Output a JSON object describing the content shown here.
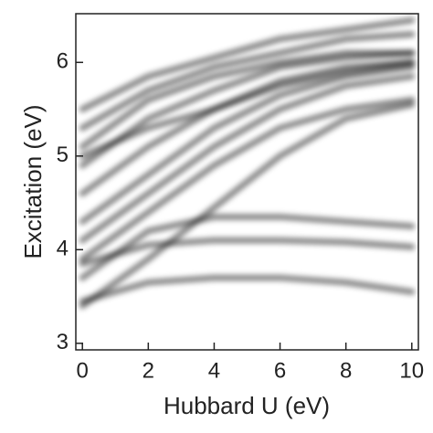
{
  "chart_data": {
    "type": "line",
    "xlabel": "Hubbard U (eV)",
    "ylabel": "Excitation (eV)",
    "x": [
      0,
      2,
      4,
      6,
      8,
      10
    ],
    "xlim": [
      -0.2,
      10.2
    ],
    "ylim": [
      2.93,
      6.52
    ],
    "xticks": [
      0,
      2,
      4,
      6,
      8,
      10
    ],
    "yticks": [
      3,
      4,
      5,
      6
    ],
    "series": [
      {
        "color": "#000000",
        "values": [
          3.45,
          3.65,
          3.7,
          3.7,
          3.65,
          3.55
        ]
      },
      {
        "color": "#000000",
        "values": [
          3.85,
          4.05,
          4.1,
          4.1,
          4.08,
          4.03
        ]
      },
      {
        "color": "#000000",
        "values": [
          3.7,
          4.2,
          4.35,
          4.35,
          4.3,
          4.25
        ]
      },
      {
        "color": "#000000",
        "values": [
          3.4,
          3.9,
          4.45,
          5.0,
          5.4,
          5.55
        ]
      },
      {
        "color": "#000000",
        "values": [
          3.9,
          4.4,
          4.9,
          5.3,
          5.5,
          5.6
        ]
      },
      {
        "color": "#000000",
        "values": [
          4.1,
          4.6,
          5.1,
          5.5,
          5.75,
          5.85
        ]
      },
      {
        "color": "#000000",
        "values": [
          4.3,
          4.8,
          5.3,
          5.65,
          5.85,
          5.95
        ]
      },
      {
        "color": "#000000",
        "values": [
          4.6,
          5.1,
          5.5,
          5.8,
          5.95,
          6.0
        ]
      },
      {
        "color": "#000000",
        "values": [
          4.9,
          5.4,
          5.7,
          5.95,
          6.05,
          6.1
        ]
      },
      {
        "color": "#000000",
        "values": [
          5.0,
          5.3,
          5.5,
          5.75,
          5.9,
          6.0
        ]
      },
      {
        "color": "#000000",
        "values": [
          5.1,
          5.6,
          5.85,
          6.0,
          6.1,
          6.1
        ]
      },
      {
        "color": "#000000",
        "values": [
          5.3,
          5.7,
          5.95,
          6.1,
          6.25,
          6.3
        ]
      },
      {
        "color": "#000000",
        "values": [
          5.5,
          5.85,
          6.05,
          6.25,
          6.35,
          6.45
        ]
      }
    ]
  }
}
